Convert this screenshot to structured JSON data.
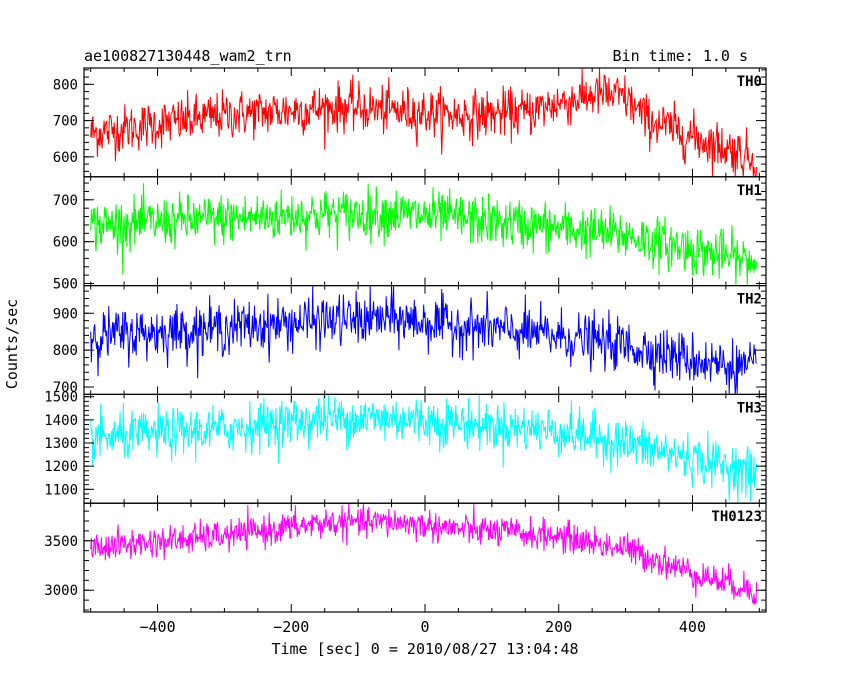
{
  "chart_data": {
    "type": "line",
    "title": "ae100827130448_wam2_trn",
    "subtitle": "Bin time: 1.0 s",
    "xlabel": "Time [sec] 0 = 2010/08/27 13:04:48",
    "ylabel": "Counts/sec",
    "xlim": [
      -510,
      510
    ],
    "xticks": [
      -400,
      -200,
      0,
      200,
      400
    ],
    "x_range": [
      -500,
      496
    ],
    "bin": 1.0,
    "grid": false,
    "panels": [
      {
        "name": "TH0",
        "color": "#ff0000",
        "ylim": [
          545,
          845
        ],
        "yticks": [
          600,
          700,
          800
        ],
        "profile": [
          [
            -500,
            665
          ],
          [
            -400,
            690
          ],
          [
            -300,
            715
          ],
          [
            -200,
            728
          ],
          [
            -120,
            738
          ],
          [
            -50,
            728
          ],
          [
            50,
            715
          ],
          [
            150,
            722
          ],
          [
            200,
            748
          ],
          [
            260,
            775
          ],
          [
            300,
            762
          ],
          [
            330,
            705
          ],
          [
            400,
            655
          ],
          [
            450,
            625
          ],
          [
            496,
            592
          ]
        ],
        "noise": 33
      },
      {
        "name": "TH1",
        "color": "#00ff00",
        "ylim": [
          495,
          755
        ],
        "yticks": [
          500,
          600,
          700
        ],
        "profile": [
          [
            -500,
            638
          ],
          [
            -300,
            655
          ],
          [
            -150,
            665
          ],
          [
            -50,
            668
          ],
          [
            50,
            655
          ],
          [
            200,
            632
          ],
          [
            300,
            615
          ],
          [
            400,
            582
          ],
          [
            496,
            548
          ]
        ],
        "noise": 30
      },
      {
        "name": "TH2",
        "color": "#0000ff",
        "ylim": [
          680,
          975
        ],
        "yticks": [
          700,
          800,
          900
        ],
        "profile": [
          [
            -500,
            838
          ],
          [
            -300,
            860
          ],
          [
            -150,
            880
          ],
          [
            -50,
            885
          ],
          [
            50,
            866
          ],
          [
            200,
            838
          ],
          [
            300,
            812
          ],
          [
            400,
            775
          ],
          [
            496,
            745
          ]
        ],
        "noise": 35
      },
      {
        "name": "TH3",
        "color": "#00ffff",
        "ylim": [
          1040,
          1510
        ],
        "yticks": [
          1100,
          1200,
          1300,
          1400,
          1500
        ],
        "profile": [
          [
            -500,
            1318
          ],
          [
            -300,
            1360
          ],
          [
            -150,
            1405
          ],
          [
            -50,
            1408
          ],
          [
            50,
            1385
          ],
          [
            200,
            1352
          ],
          [
            300,
            1300
          ],
          [
            400,
            1232
          ],
          [
            496,
            1168
          ]
        ],
        "noise": 52
      },
      {
        "name": "TH0123",
        "color": "#ff00ff",
        "ylim": [
          2780,
          3880
        ],
        "yticks": [
          3000,
          3500
        ],
        "profile": [
          [
            -500,
            3428
          ],
          [
            -300,
            3550
          ],
          [
            -150,
            3680
          ],
          [
            -50,
            3690
          ],
          [
            50,
            3620
          ],
          [
            200,
            3545
          ],
          [
            300,
            3420
          ],
          [
            400,
            3175
          ],
          [
            496,
            2990
          ]
        ],
        "noise": 78
      }
    ]
  }
}
